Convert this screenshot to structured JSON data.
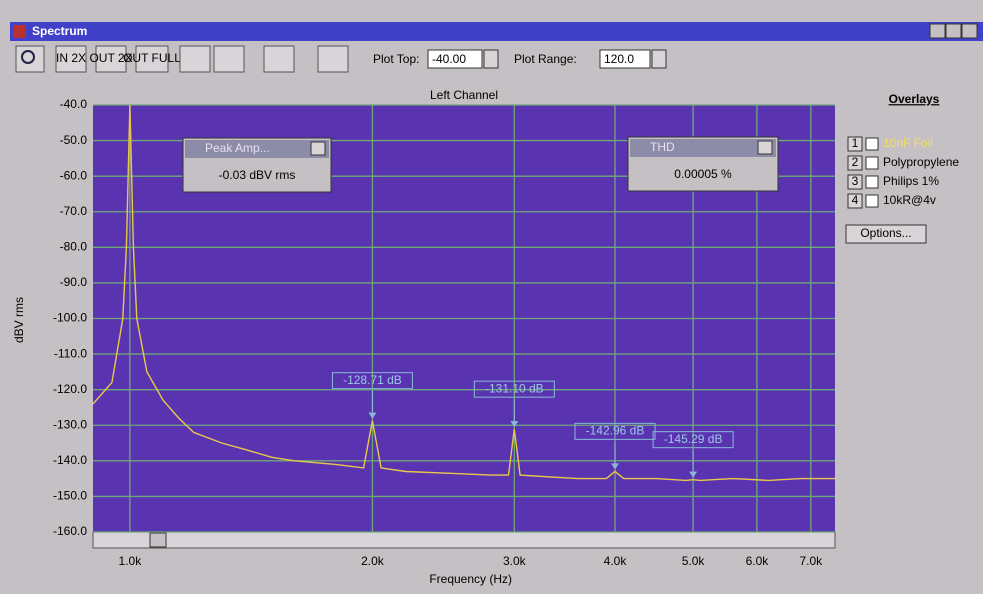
{
  "window": {
    "title": "Spectrum"
  },
  "toolbar": {
    "buttons": [
      "IN 2X",
      "OUT 2X",
      "OUT FULL"
    ],
    "plot_top_label": "Plot Top:",
    "plot_top_value": "-40.00",
    "plot_range_label": "Plot Range:",
    "plot_range_value": "120.0"
  },
  "chart_data": {
    "type": "line",
    "title": "Left Channel",
    "x_label": "Frequency (Hz)",
    "y_label": "dBV rms",
    "log_x": true,
    "grid": true,
    "xlim": [
      900,
      7500
    ],
    "ylim": [
      -160,
      -40
    ],
    "xticks": [
      {
        "value": 1000,
        "label": "1.0k"
      },
      {
        "value": 2000,
        "label": "2.0k"
      },
      {
        "value": 3000,
        "label": "3.0k"
      },
      {
        "value": 4000,
        "label": "4.0k"
      },
      {
        "value": 5000,
        "label": "5.0k"
      },
      {
        "value": 6000,
        "label": "6.0k"
      },
      {
        "value": 7000,
        "label": "7.0k"
      }
    ],
    "yticks": [
      {
        "value": -40,
        "label": "-40.0"
      },
      {
        "value": -50,
        "label": "-50.0"
      },
      {
        "value": -60,
        "label": "-60.0"
      },
      {
        "value": -70,
        "label": "-70.0"
      },
      {
        "value": -80,
        "label": "-80.0"
      },
      {
        "value": -90,
        "label": "-90.0"
      },
      {
        "value": -100,
        "label": "-100.0"
      },
      {
        "value": -110,
        "label": "-110.0"
      },
      {
        "value": -120,
        "label": "-120.0"
      },
      {
        "value": -130,
        "label": "-130.0"
      },
      {
        "value": -140,
        "label": "-140.0"
      },
      {
        "value": -150,
        "label": "-150.0"
      },
      {
        "value": -160,
        "label": "-160.0"
      }
    ],
    "series": [
      {
        "color": "#e8c84a",
        "x": [
          900,
          950,
          980,
          990,
          1000,
          1010,
          1020,
          1050,
          1100,
          1150,
          1200,
          1300,
          1400,
          1500,
          1600,
          1800,
          1950,
          2000,
          2050,
          2200,
          2500,
          2800,
          2950,
          3000,
          3050,
          3300,
          3600,
          3900,
          4000,
          4100,
          4500,
          4900,
          5000,
          5100,
          5600,
          6200,
          6800,
          7500
        ],
        "values": [
          -124,
          -118,
          -100,
          -80,
          -40,
          -80,
          -100,
          -115,
          -123,
          -128,
          -132,
          -135,
          -137,
          -139,
          -140,
          -141,
          -142,
          -128.71,
          -142,
          -143,
          -143.5,
          -144,
          -144,
          -131.1,
          -144,
          -144.5,
          -145,
          -145,
          -142.96,
          -145,
          -145,
          -145.5,
          -145.29,
          -145.5,
          -145,
          -145.5,
          -145,
          -145
        ]
      }
    ],
    "markers": {
      "x": [
        2000,
        3000,
        4000,
        5000
      ],
      "values": [
        -128.71,
        -131.1,
        -142.96,
        -145.29
      ],
      "value_labels": [
        "-128.71 dB",
        "-131.10 dB",
        "-142.96 dB",
        "-145.29 dB"
      ]
    }
  },
  "popups": [
    {
      "title": "Peak Amp...",
      "value": "-0.03 dBV rms"
    },
    {
      "title": "THD",
      "value": "0.00005 %"
    }
  ],
  "overlays": {
    "title": "Overlays",
    "items": [
      {
        "number": "1",
        "label": "10nF Foil"
      },
      {
        "number": "2",
        "label": "Polypropylene"
      },
      {
        "number": "3",
        "label": "Philips 1%"
      },
      {
        "number": "4",
        "label": "10kR@4v"
      }
    ],
    "options": "Options..."
  }
}
